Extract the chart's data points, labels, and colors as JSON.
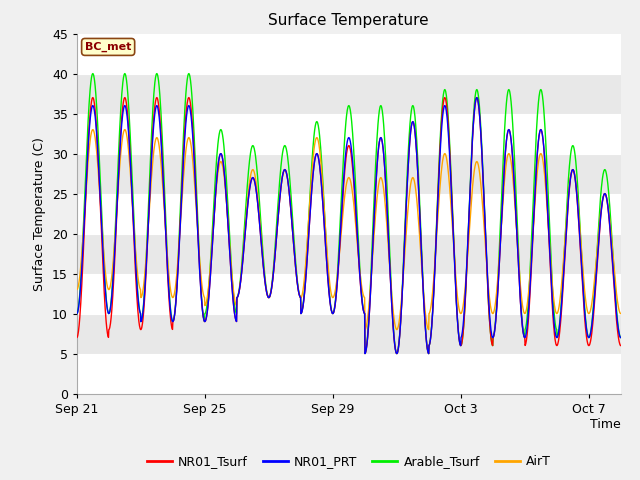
{
  "title": "Surface Temperature",
  "xlabel": "Time",
  "ylabel": "Surface Temperature (C)",
  "annotation": "BC_met",
  "ylim": [
    0,
    45
  ],
  "yticks": [
    0,
    5,
    10,
    15,
    20,
    25,
    30,
    35,
    40,
    45
  ],
  "xtick_labels": [
    "Sep 21",
    "Sep 25",
    "Sep 29",
    "Oct 3",
    "Oct 7"
  ],
  "xtick_positions": [
    0,
    4,
    8,
    12,
    16
  ],
  "line_colors": [
    "#ff0000",
    "#0000ff",
    "#00ee00",
    "#ffa500"
  ],
  "bg_color": "#f0f0f0",
  "plot_bg": "#e8e8e8",
  "band_colors": [
    "#ffffff",
    "#e8e8e8"
  ],
  "title_fontsize": 11,
  "axis_fontsize": 9,
  "legend_fontsize": 9,
  "n_days": 17,
  "red_min": [
    7,
    8,
    8,
    9,
    9,
    12,
    12,
    10,
    10,
    5,
    5,
    6,
    6,
    7,
    6,
    6,
    6
  ],
  "red_max": [
    37,
    37,
    37,
    37,
    30,
    27,
    28,
    30,
    31,
    32,
    34,
    37,
    37,
    33,
    33,
    28,
    25
  ],
  "blue_min": [
    10,
    10,
    9,
    9,
    9,
    12,
    12,
    10,
    10,
    5,
    5,
    6,
    7,
    7,
    7,
    7,
    7
  ],
  "blue_max": [
    36,
    36,
    36,
    36,
    30,
    27,
    28,
    30,
    32,
    32,
    34,
    36,
    37,
    33,
    33,
    28,
    25
  ],
  "green_min": [
    10,
    10,
    9,
    9,
    10,
    12,
    12,
    10,
    10,
    5,
    5,
    6,
    6,
    7,
    8,
    7,
    7
  ],
  "green_max": [
    40,
    40,
    40,
    40,
    33,
    31,
    31,
    34,
    36,
    36,
    36,
    38,
    38,
    38,
    38,
    31,
    28
  ],
  "orange_min": [
    13,
    13,
    12,
    12,
    11,
    12,
    12,
    12,
    12,
    8,
    8,
    10,
    10,
    10,
    10,
    10,
    10
  ],
  "orange_max": [
    33,
    33,
    32,
    32,
    29,
    28,
    28,
    32,
    27,
    27,
    27,
    30,
    29,
    30,
    30,
    28,
    25
  ]
}
